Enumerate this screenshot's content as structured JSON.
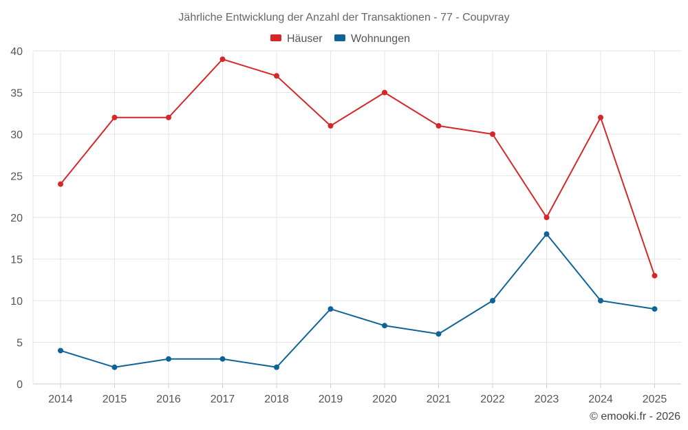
{
  "colors": {
    "houses": "#d62728",
    "apartments": "#0f6396"
  },
  "chart_data": {
    "type": "line",
    "title": "Jährliche Entwicklung der Anzahl der Transaktionen - 77 - Coupvray",
    "categories": [
      "2014",
      "2015",
      "2016",
      "2017",
      "2018",
      "2019",
      "2020",
      "2021",
      "2022",
      "2023",
      "2024",
      "2025"
    ],
    "series": [
      {
        "name": "Häuser",
        "values": [
          24,
          32,
          32,
          39,
          37,
          31,
          35,
          31,
          30,
          20,
          32,
          13
        ]
      },
      {
        "name": "Wohnungen",
        "values": [
          4,
          2,
          3,
          3,
          2,
          9,
          7,
          6,
          10,
          18,
          10,
          9
        ]
      }
    ],
    "ylim": [
      0,
      40
    ],
    "yticks": [
      0,
      5,
      10,
      15,
      20,
      25,
      30,
      35,
      40
    ],
    "grid": true,
    "legend_position": "top-center",
    "xlabel": "",
    "ylabel": ""
  },
  "credit": "© emooki.fr - 2026"
}
